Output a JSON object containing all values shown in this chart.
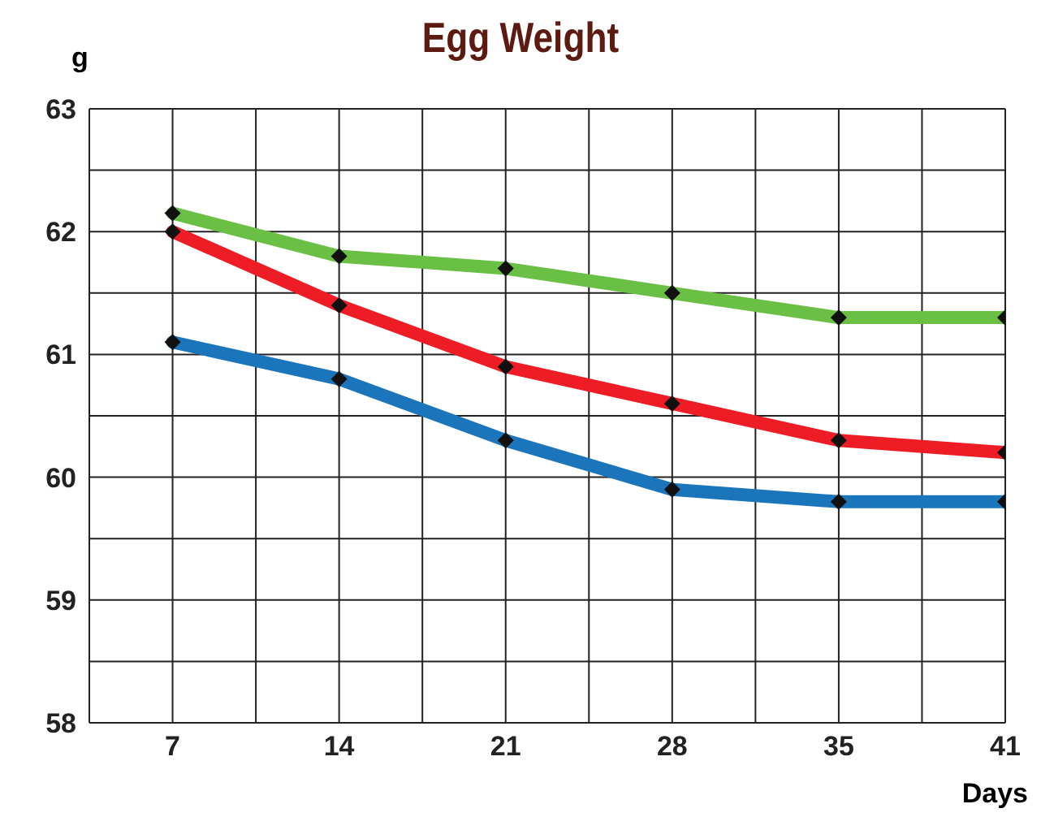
{
  "chart_data": {
    "type": "line",
    "title": "Egg Weight",
    "ylabel": "g",
    "xlabel": "Days",
    "categories": [
      "7",
      "14",
      "21",
      "28",
      "35",
      "41"
    ],
    "series": [
      {
        "color": "#6abf45",
        "values": [
          62.15,
          61.8,
          61.7,
          61.5,
          61.3,
          61.3
        ]
      },
      {
        "color": "#ee1c25",
        "values": [
          62.0,
          61.4,
          60.9,
          60.6,
          60.3,
          60.2
        ]
      },
      {
        "color": "#1b75bb",
        "values": [
          61.1,
          60.8,
          60.3,
          59.9,
          59.8,
          59.8
        ]
      }
    ],
    "ylim": [
      58,
      63
    ],
    "yticks": [
      58,
      59,
      60,
      61,
      62,
      63
    ],
    "grid": true,
    "marker": "diamond",
    "line_style": "solid"
  }
}
